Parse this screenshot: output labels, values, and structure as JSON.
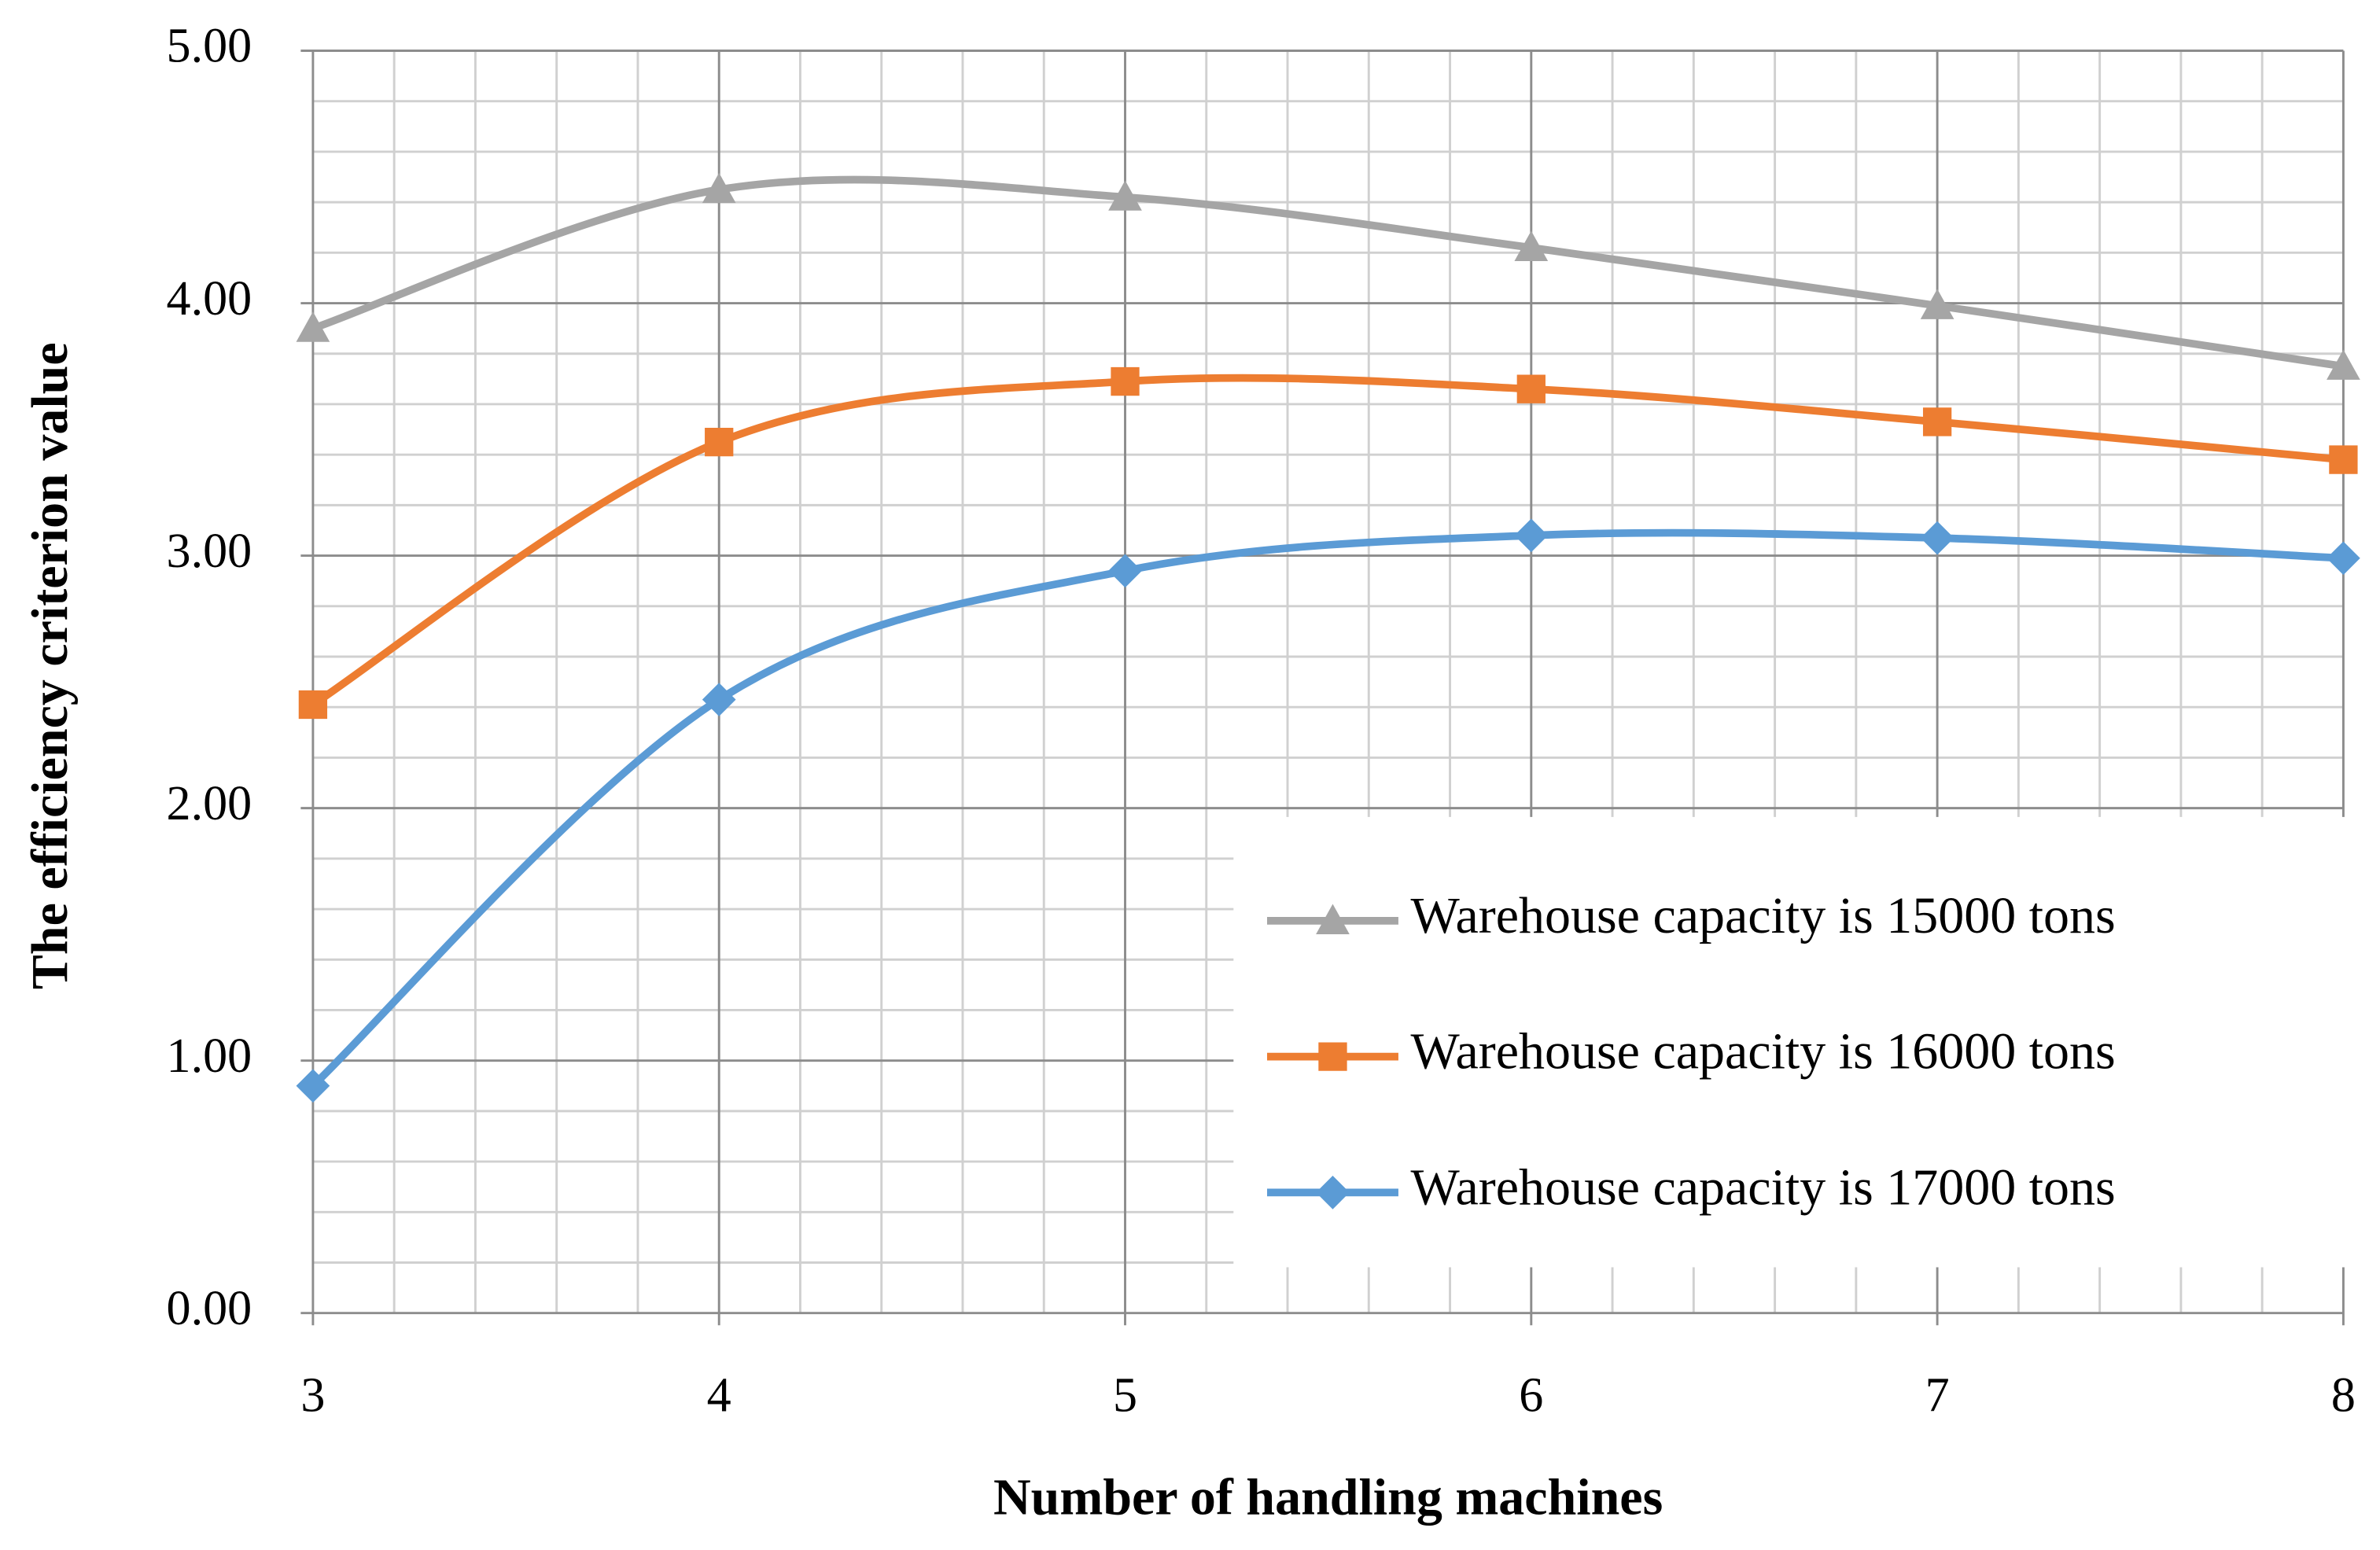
{
  "chart_data": {
    "type": "line",
    "x_label": "Number of handling machines",
    "y_label": "The efficiency criterion value",
    "x": [
      3,
      4,
      5,
      6,
      7,
      8
    ],
    "series": [
      {
        "name": "Warehouse capacity is 15000 tons",
        "color": "#a5a5a5",
        "marker": "triangle",
        "values": [
          3.9,
          4.45,
          4.42,
          4.22,
          3.99,
          3.75
        ]
      },
      {
        "name": "Warehouse capacity is 16000 tons",
        "color": "#ed7d31",
        "marker": "square",
        "values": [
          2.41,
          3.45,
          3.69,
          3.66,
          3.53,
          3.38
        ]
      },
      {
        "name": "Warehouse capacity is 17000 tons",
        "color": "#5b9bd5",
        "marker": "diamond",
        "values": [
          0.9,
          2.43,
          2.94,
          3.08,
          3.07,
          2.99
        ]
      }
    ],
    "xlim": [
      3,
      8
    ],
    "xticks": [
      3,
      4,
      5,
      6,
      7,
      8
    ],
    "ylim": [
      0,
      5
    ],
    "yticks": [
      {
        "value": 0,
        "label": "0.00"
      },
      {
        "value": 1,
        "label": "1.00"
      },
      {
        "value": 2,
        "label": "2.00"
      },
      {
        "value": 3,
        "label": "3.00"
      },
      {
        "value": 4,
        "label": "4.00"
      },
      {
        "value": 5,
        "label": "5.00"
      }
    ],
    "grid": true,
    "minor_grid": 5,
    "smooth": true,
    "legend": "lower right"
  }
}
